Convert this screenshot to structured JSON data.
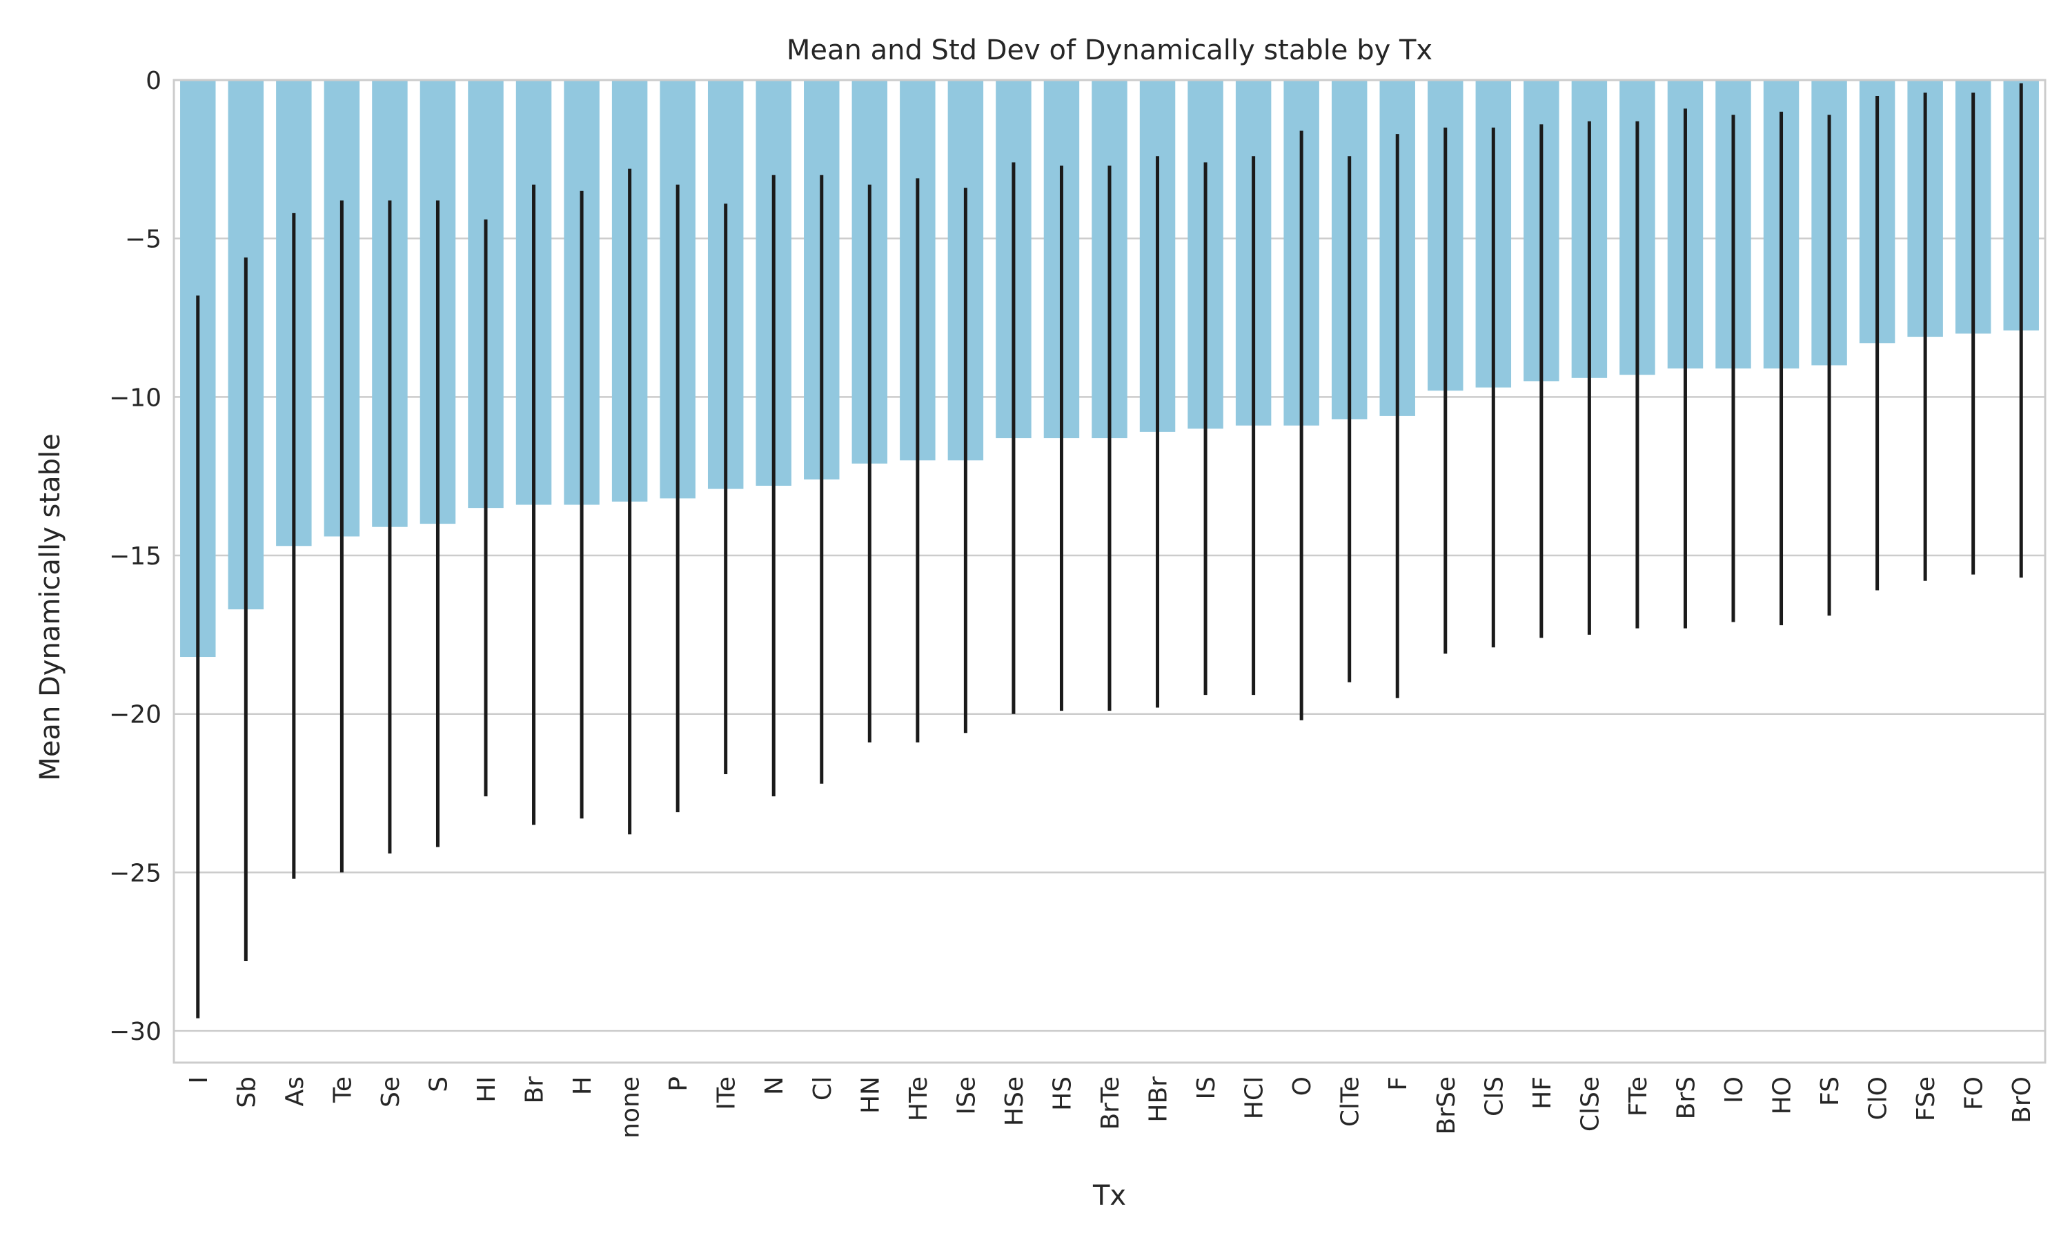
{
  "chart_data": {
    "type": "bar",
    "title": "Mean and Std Dev of Dynamically stable by Tx",
    "xlabel": "Tx",
    "ylabel": "Mean Dynamically stable",
    "ylim": [
      -31,
      0
    ],
    "yticks": [
      0,
      -5,
      -10,
      -15,
      -20,
      -25,
      -30
    ],
    "ytick_labels": [
      "0",
      "−5",
      "−10",
      "−15",
      "−20",
      "−25",
      "−30"
    ],
    "grid": true,
    "bar_color": "#92c8df",
    "error_color": "#1a1a1a",
    "categories": [
      "I",
      "Sb",
      "As",
      "Te",
      "Se",
      "S",
      "HI",
      "Br",
      "H",
      "none",
      "P",
      "ITe",
      "N",
      "Cl",
      "HN",
      "HTe",
      "ISe",
      "HSe",
      "HS",
      "BrTe",
      "HBr",
      "IS",
      "HCl",
      "O",
      "ClTe",
      "F",
      "BrSe",
      "ClS",
      "HF",
      "ClSe",
      "FTe",
      "BrS",
      "IO",
      "HO",
      "FS",
      "ClO",
      "FSe",
      "FO",
      "BrO"
    ],
    "values": [
      -18.2,
      -16.7,
      -14.7,
      -14.4,
      -14.1,
      -14.0,
      -13.5,
      -13.4,
      -13.4,
      -13.3,
      -13.2,
      -12.9,
      -12.8,
      -12.6,
      -12.1,
      -12.0,
      -12.0,
      -11.3,
      -11.3,
      -11.3,
      -11.1,
      -11.0,
      -10.9,
      -10.9,
      -10.7,
      -10.6,
      -9.8,
      -9.7,
      -9.5,
      -9.4,
      -9.3,
      -9.1,
      -9.1,
      -9.1,
      -9.0,
      -8.3,
      -8.1,
      -8.0,
      -7.9
    ],
    "std": [
      11.4,
      11.1,
      10.5,
      10.6,
      10.3,
      10.2,
      9.1,
      10.1,
      9.9,
      10.5,
      9.9,
      9.0,
      9.8,
      9.6,
      8.8,
      8.9,
      8.6,
      8.7,
      8.6,
      8.6,
      8.7,
      8.4,
      8.5,
      9.3,
      8.3,
      8.9,
      8.3,
      8.2,
      8.1,
      8.1,
      8.0,
      8.2,
      8.0,
      8.1,
      7.9,
      7.8,
      7.7,
      7.6,
      7.8
    ]
  }
}
